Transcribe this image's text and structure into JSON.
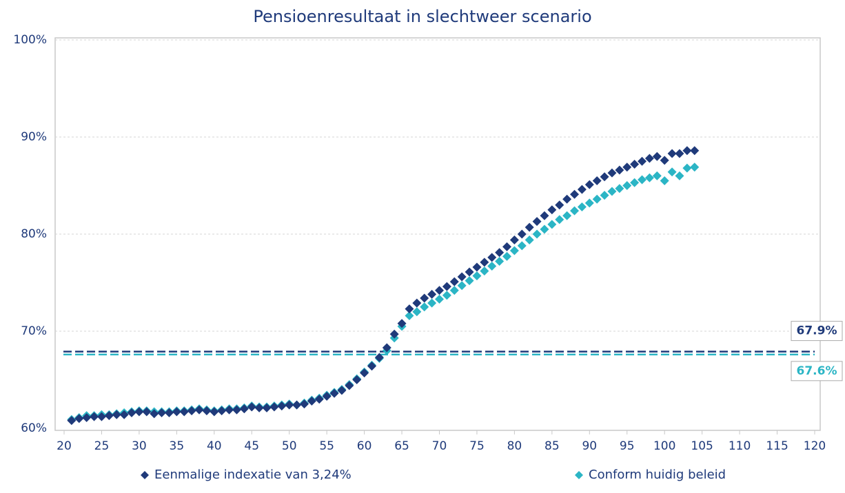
{
  "chart_data": {
    "type": "scatter",
    "title": "Pensioenresultaat in slechtweer scenario",
    "xlim": [
      20,
      120
    ],
    "xticks": [
      20,
      25,
      30,
      35,
      40,
      45,
      50,
      55,
      60,
      65,
      70,
      75,
      80,
      85,
      90,
      95,
      100,
      105,
      110,
      115,
      120
    ],
    "ylim": [
      60,
      100
    ],
    "yticks": [
      {
        "value": 60,
        "label": "60%"
      },
      {
        "value": 70,
        "label": "70%"
      },
      {
        "value": 80,
        "label": "80%"
      },
      {
        "value": 90,
        "label": "90%"
      },
      {
        "value": 100,
        "label": "100%"
      }
    ],
    "grid": true,
    "legend": "bottom",
    "x": [
      21,
      22,
      23,
      24,
      25,
      26,
      27,
      28,
      29,
      30,
      31,
      32,
      33,
      34,
      35,
      36,
      37,
      38,
      39,
      40,
      41,
      42,
      43,
      44,
      45,
      46,
      47,
      48,
      49,
      50,
      51,
      52,
      53,
      54,
      55,
      56,
      57,
      58,
      59,
      60,
      61,
      62,
      63,
      64,
      65,
      66,
      67,
      68,
      69,
      70,
      71,
      72,
      73,
      74,
      75,
      76,
      77,
      78,
      79,
      80,
      81,
      82,
      83,
      84,
      85,
      86,
      87,
      88,
      89,
      90,
      91,
      92,
      93,
      94,
      95,
      96,
      97,
      98,
      99,
      100,
      101,
      102,
      103,
      104
    ],
    "series": [
      {
        "name": "Eenmalige indexatie van 3,24%",
        "color": "#1f3a7a",
        "values": [
          60.8,
          61.0,
          61.1,
          61.2,
          61.2,
          61.3,
          61.4,
          61.4,
          61.6,
          61.7,
          61.7,
          61.5,
          61.6,
          61.6,
          61.7,
          61.7,
          61.8,
          61.9,
          61.8,
          61.7,
          61.8,
          61.9,
          61.9,
          62.0,
          62.2,
          62.1,
          62.1,
          62.2,
          62.3,
          62.4,
          62.4,
          62.5,
          62.8,
          63.0,
          63.3,
          63.6,
          63.9,
          64.4,
          65.0,
          65.7,
          66.4,
          67.3,
          68.3,
          69.7,
          70.8,
          72.3,
          72.9,
          73.4,
          73.8,
          74.2,
          74.6,
          75.1,
          75.6,
          76.1,
          76.6,
          77.1,
          77.6,
          78.1,
          78.7,
          79.4,
          80.0,
          80.7,
          81.3,
          81.9,
          82.5,
          83.0,
          83.6,
          84.1,
          84.6,
          85.1,
          85.5,
          85.9,
          86.3,
          86.6,
          86.9,
          87.2,
          87.5,
          87.8,
          88.0,
          87.6,
          88.3,
          88.3,
          88.6,
          88.6
        ]
      },
      {
        "name": "Conform huidig beleid",
        "color": "#2bb5c5",
        "values": [
          60.9,
          61.1,
          61.3,
          61.3,
          61.4,
          61.4,
          61.5,
          61.6,
          61.7,
          61.8,
          61.8,
          61.7,
          61.7,
          61.7,
          61.8,
          61.8,
          61.9,
          62.0,
          61.9,
          61.8,
          61.9,
          62.0,
          62.0,
          62.1,
          62.3,
          62.2,
          62.2,
          62.3,
          62.4,
          62.5,
          62.4,
          62.6,
          62.9,
          63.1,
          63.4,
          63.7,
          64.0,
          64.5,
          65.1,
          65.8,
          66.5,
          67.2,
          68.0,
          69.3,
          70.5,
          71.6,
          72.0,
          72.5,
          72.9,
          73.3,
          73.7,
          74.2,
          74.7,
          75.2,
          75.7,
          76.2,
          76.7,
          77.2,
          77.7,
          78.3,
          78.8,
          79.4,
          80.0,
          80.5,
          81.0,
          81.5,
          81.9,
          82.4,
          82.8,
          83.2,
          83.6,
          84.0,
          84.4,
          84.7,
          85.0,
          85.3,
          85.6,
          85.8,
          86.0,
          85.5,
          86.4,
          86.0,
          86.8,
          86.9
        ]
      }
    ],
    "reference_lines": [
      {
        "value": 67.9,
        "label": "67.9%",
        "color": "#1f3a7a"
      },
      {
        "value": 67.6,
        "label": "67.6%",
        "color": "#2bb5c5"
      }
    ]
  }
}
